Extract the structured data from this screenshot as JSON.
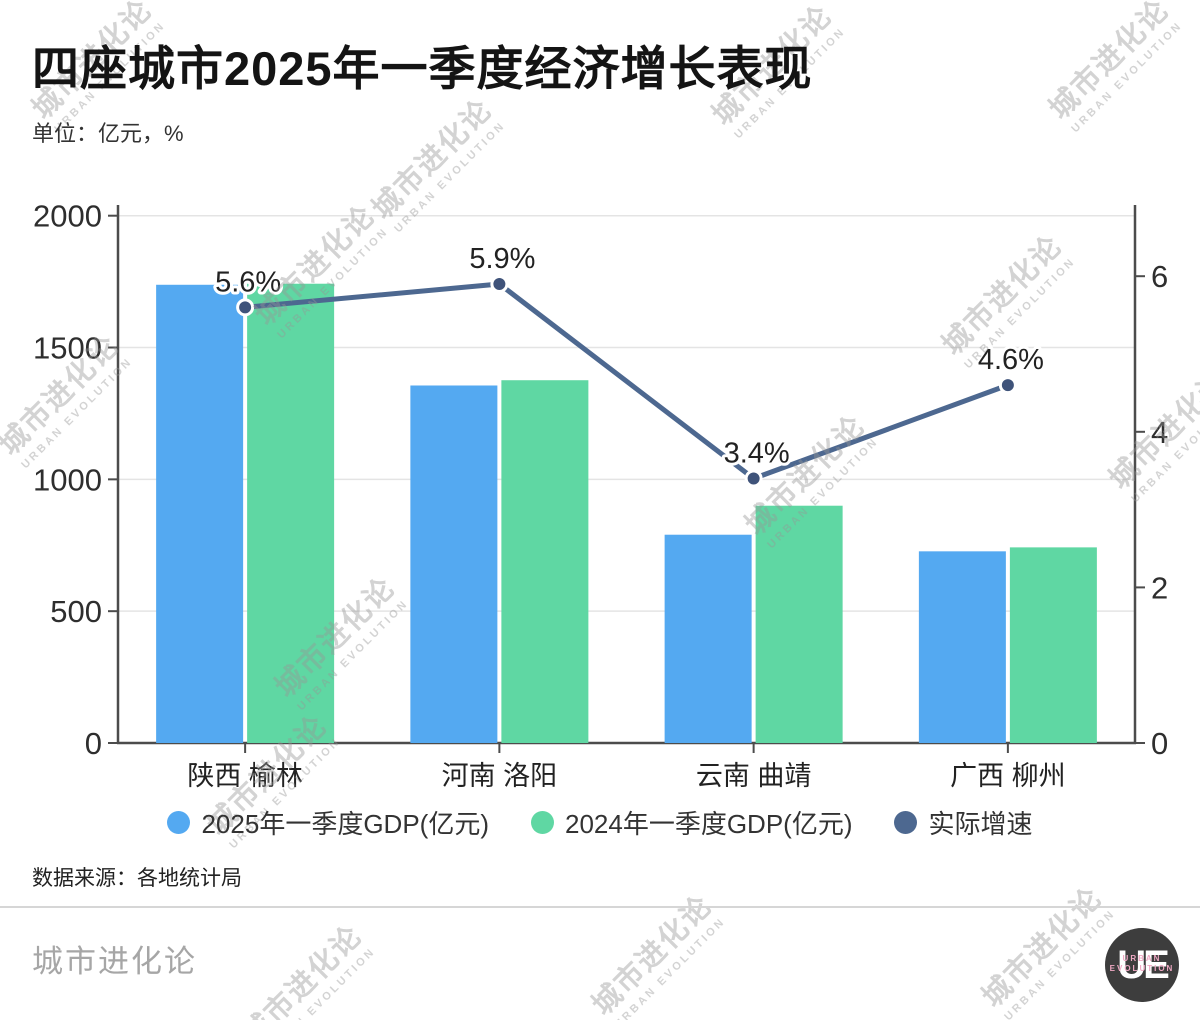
{
  "header": {
    "title": "四座城市2025年一季度经济增长表现",
    "unit": "单位：亿元，%"
  },
  "chart_data": {
    "type": "bar",
    "subtype": "grouped-bars-with-line",
    "title": "四座城市2025年一季度经济增长表现",
    "unit": "亿元，%",
    "categories": [
      "陕西 榆林",
      "河南 洛阳",
      "云南 曲靖",
      "广西 柳州"
    ],
    "series": [
      {
        "name": "2025年一季度GDP(亿元)",
        "type": "bar",
        "axis": "left",
        "color": "#54a9f1",
        "values": [
          1738,
          1356,
          790,
          727
        ]
      },
      {
        "name": "2024年一季度GDP(亿元)",
        "type": "bar",
        "axis": "left",
        "color": "#5fd7a3",
        "values": [
          1742,
          1376,
          900,
          742
        ]
      },
      {
        "name": "实际增速",
        "type": "line",
        "axis": "right",
        "color": "#4d6890",
        "point_color": "#3f537a",
        "values": [
          5.6,
          5.9,
          3.4,
          4.6
        ],
        "point_labels": [
          "5.6%",
          "5.9%",
          "3.4%",
          "4.6%"
        ]
      }
    ],
    "left_axis": {
      "ticks": [
        0,
        500,
        1000,
        1500,
        2000
      ],
      "min": 0,
      "max": 2000
    },
    "right_axis": {
      "ticks": [
        0,
        2,
        4,
        6
      ],
      "min": 0,
      "max": 6.9
    },
    "grid": true,
    "legend_position": "bottom",
    "axis_color": "#4c4c4c",
    "grid_color": "#e4e4e4",
    "label_color": "#2e2e2e"
  },
  "legend": {
    "items": [
      {
        "label": "2025年一季度GDP(亿元)",
        "color": "#54a9f1"
      },
      {
        "label": "2024年一季度GDP(亿元)",
        "color": "#5fd7a3"
      },
      {
        "label": "实际增速",
        "color": "#4d6890"
      }
    ]
  },
  "source": {
    "text": "数据来源：各地统计局"
  },
  "footer": {
    "brand": "城市进化论",
    "logo_text": "UE",
    "logo_sub1": "URBAN",
    "logo_sub2": "EVOLUTION"
  },
  "watermark": {
    "line1": "城市进化论",
    "line2": "URBAN EVOLUTION"
  }
}
